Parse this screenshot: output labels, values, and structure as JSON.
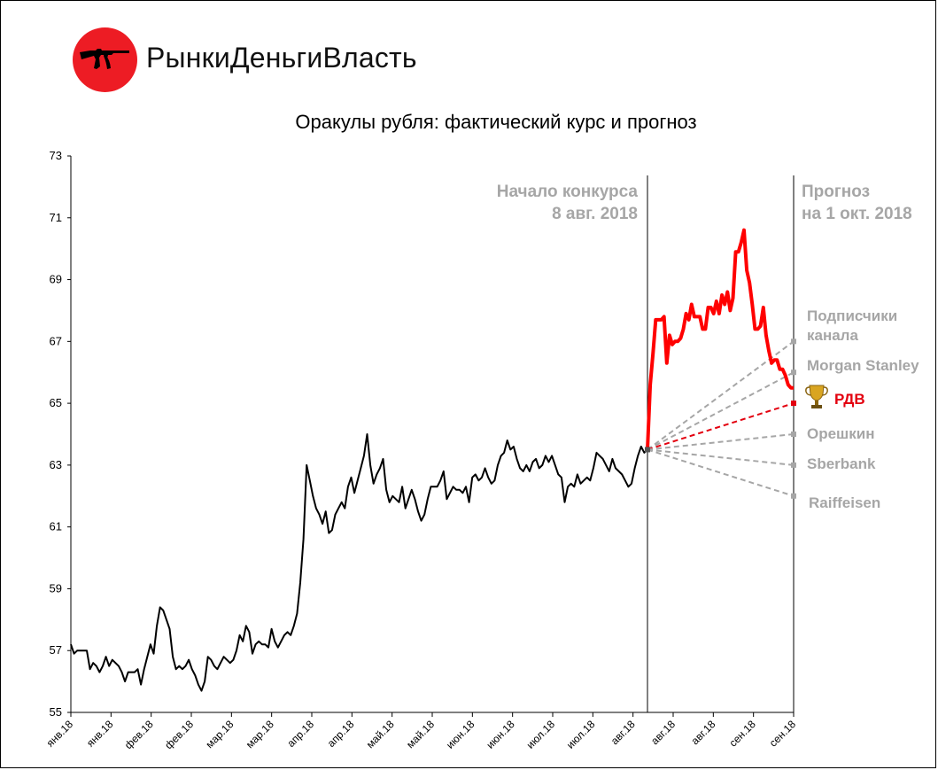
{
  "brand": {
    "name": "РынкиДеньгиВласть",
    "logo_icon": "rifle-icon",
    "logo_color": "#ed1c24"
  },
  "chart_data": {
    "type": "line",
    "title": "Оракулы рубля: фактический курс и прогноз",
    "xlabel": "",
    "ylabel": "",
    "ylim": [
      55,
      73
    ],
    "yticks": [
      55,
      57,
      59,
      61,
      63,
      65,
      67,
      69,
      71,
      73
    ],
    "xticks": [
      "янв.18",
      "янв.18",
      "фев.18",
      "фев.18",
      "мар.18",
      "мар.18",
      "апр.18",
      "апр.18",
      "май.18",
      "май.18",
      "июн.18",
      "июн.18",
      "июл.18",
      "июл.18",
      "авг.18",
      "авг.18",
      "авг.18",
      "сен.18",
      "сен.18"
    ],
    "grid": false,
    "annotations": [
      {
        "name": "contest-start",
        "lines": [
          "Начало конкурса",
          "8 авг. 2018"
        ]
      },
      {
        "name": "forecast-date",
        "lines": [
          "Прогноз",
          "на 1 окт. 2018"
        ]
      }
    ],
    "series": [
      {
        "name": "",
        "color": "#000000",
        "values": [
          57.2,
          56.9,
          57.0,
          57.0,
          57.0,
          57.0,
          56.4,
          56.6,
          56.5,
          56.3,
          56.5,
          56.8,
          56.5,
          56.7,
          56.6,
          56.5,
          56.3,
          56.0,
          56.3,
          56.3,
          56.3,
          56.4,
          55.9,
          56.4,
          56.8,
          57.2,
          56.9,
          57.8,
          58.4,
          58.3,
          58.0,
          57.7,
          56.8,
          56.4,
          56.5,
          56.4,
          56.5,
          56.7,
          56.4,
          56.2,
          55.9,
          55.7,
          56.0,
          56.8,
          56.7,
          56.5,
          56.4,
          56.6,
          56.8,
          56.7,
          56.6,
          56.7,
          57.0,
          57.5,
          57.3,
          57.8,
          57.6,
          56.9,
          57.2,
          57.3,
          57.2,
          57.2,
          57.1,
          57.7,
          57.3,
          57.1,
          57.3,
          57.5,
          57.6,
          57.5,
          57.8,
          58.2,
          59.2,
          60.6,
          63.0,
          62.5,
          62.0,
          61.6,
          61.4,
          61.1,
          61.5,
          60.8,
          60.9,
          61.4,
          61.6,
          61.8,
          61.6,
          62.3,
          62.6,
          62.1,
          62.5,
          62.9,
          63.3,
          64.0,
          63.0,
          62.4,
          62.7,
          62.9,
          63.2,
          62.2,
          61.8,
          62.0,
          61.9,
          61.8,
          62.3,
          61.6,
          61.9,
          62.2,
          61.9,
          61.5,
          61.2,
          61.4,
          61.9,
          62.3,
          62.3,
          62.3,
          62.5,
          62.8,
          61.9,
          62.1,
          62.3,
          62.2,
          62.2,
          62.1,
          62.3,
          61.8,
          62.6,
          62.7,
          62.5,
          62.6,
          62.9,
          62.6,
          62.4,
          62.5,
          63.0,
          63.3,
          63.4,
          63.8,
          63.5,
          63.6,
          63.2,
          62.9,
          62.8,
          63.0,
          62.8,
          63.1,
          63.2,
          62.9,
          63.0,
          63.3,
          63.1,
          63.3,
          63.0,
          62.7,
          62.6,
          61.8,
          62.3,
          62.4,
          62.3,
          62.7,
          62.4,
          62.5,
          62.6,
          62.5,
          62.9,
          63.4,
          63.3,
          63.2,
          63.0,
          62.8,
          63.2,
          62.9,
          62.8,
          62.7,
          62.5,
          62.3,
          62.4,
          62.9,
          63.3,
          63.6,
          63.4,
          63.5
        ],
        "start_label": "янв.18",
        "end_label": "8 авг. 2018"
      },
      {
        "name": "",
        "color": "#ff0000",
        "values": [
          63.5,
          65.6,
          66.6,
          67.7,
          67.7,
          67.7,
          67.8,
          66.3,
          67.2,
          66.9,
          67.0,
          67.0,
          67.1,
          67.4,
          67.9,
          67.7,
          68.2,
          67.8,
          67.8,
          67.8,
          67.4,
          67.4,
          68.1,
          68.1,
          67.9,
          68.3,
          67.9,
          68.5,
          68.2,
          68.6,
          68.0,
          68.4,
          69.9,
          69.9,
          70.2,
          70.6,
          69.3,
          68.9,
          68.2,
          67.4,
          67.4,
          67.5,
          68.1,
          67.2,
          66.7,
          66.3,
          66.4,
          66.4,
          66.1,
          66.1,
          65.9,
          65.6,
          65.5,
          65.5
        ]
      }
    ],
    "forecasts": [
      {
        "name": "Подписчики канала",
        "label_lines": [
          "Подписчики",
          "канала"
        ],
        "value": 67.0,
        "color": "#a6a6a6"
      },
      {
        "name": "Morgan Stanley",
        "label_lines": [
          "Morgan Stanley"
        ],
        "value": 66.0,
        "color": "#a6a6a6"
      },
      {
        "name": "РДВ",
        "label_lines": [
          "РДВ"
        ],
        "value": 65.0,
        "color": "#e3000f",
        "winner": true,
        "winner_icon": "trophy-icon"
      },
      {
        "name": "Орешкин",
        "label_lines": [
          "Орешкин"
        ],
        "value": 64.0,
        "color": "#a6a6a6"
      },
      {
        "name": "Sberbank",
        "label_lines": [
          "Sberbank"
        ],
        "value": 63.0,
        "color": "#a6a6a6"
      },
      {
        "name": "Raiffeisen",
        "label_lines": [
          "Raiffeisen"
        ],
        "value": 62.0,
        "color": "#a6a6a6"
      }
    ],
    "forecast_origin_value": 63.5
  }
}
